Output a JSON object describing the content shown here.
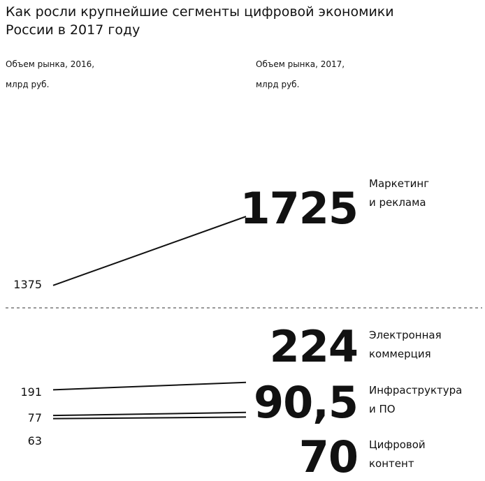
{
  "chart_data": {
    "type": "slope",
    "title": "Как росли крупнейшие сегменты цифровой экономики\nРоссии в 2017 году",
    "categories": [
      "Маркетинг\nи реклама",
      "Электронная\nкоммерция",
      "Инфраструктура\nи ПО",
      "Цифровой\nконтент"
    ],
    "series": [
      {
        "name": "Объем рынка, 2016,\nмлрд руб.",
        "color": "#111111",
        "values": [
          1375,
          191,
          77,
          63
        ]
      },
      {
        "name": "Объем рынка, 2017,\nмлрд руб.",
        "color": "#111111",
        "values": [
          1725,
          224,
          90.5,
          70
        ],
        "value_labels": [
          "1725",
          "224",
          "90,5",
          "70"
        ]
      }
    ],
    "panels": [
      {
        "ylim": [
          1300,
          2470
        ]
      },
      {
        "ylim": [
          0,
          465
        ]
      }
    ],
    "panel_of": [
      0,
      1,
      1,
      1
    ]
  }
}
